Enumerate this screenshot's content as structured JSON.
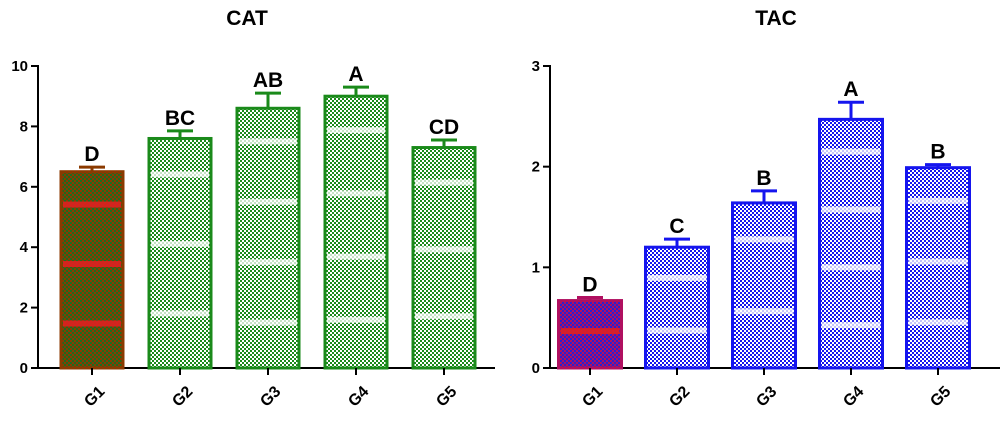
{
  "chart_data": [
    {
      "type": "bar",
      "title": "CAT",
      "categories": [
        "G1",
        "G2",
        "G3",
        "G4",
        "G5"
      ],
      "values": [
        6.5,
        7.6,
        8.6,
        9.0,
        7.3
      ],
      "errors": [
        0.15,
        0.25,
        0.5,
        0.3,
        0.25
      ],
      "significance_labels": [
        "D",
        "BC",
        "AB",
        "A",
        "CD"
      ],
      "ylim": [
        0,
        10
      ],
      "yticks": [
        "0",
        "2",
        "4",
        "6",
        "8",
        "10"
      ],
      "xlabel": "",
      "ylabel": "",
      "grid": false,
      "colors": {
        "bar": "#1a8a1a",
        "first_bar": "#8b3a00",
        "first_bar_accent": "#e02020"
      }
    },
    {
      "type": "bar",
      "title": "TAC",
      "categories": [
        "G1",
        "G2",
        "G3",
        "G4",
        "G5"
      ],
      "values": [
        0.67,
        1.2,
        1.64,
        2.47,
        1.99
      ],
      "errors": [
        0.03,
        0.08,
        0.12,
        0.17,
        0.03
      ],
      "significance_labels": [
        "D",
        "C",
        "B",
        "A",
        "B"
      ],
      "ylim": [
        0,
        3
      ],
      "yticks": [
        "0",
        "1",
        "2",
        "3"
      ],
      "xlabel": "",
      "ylabel": "",
      "grid": false,
      "colors": {
        "bar": "#1515ee",
        "first_bar": "#b01060",
        "first_bar_accent": "#e02020"
      }
    }
  ]
}
